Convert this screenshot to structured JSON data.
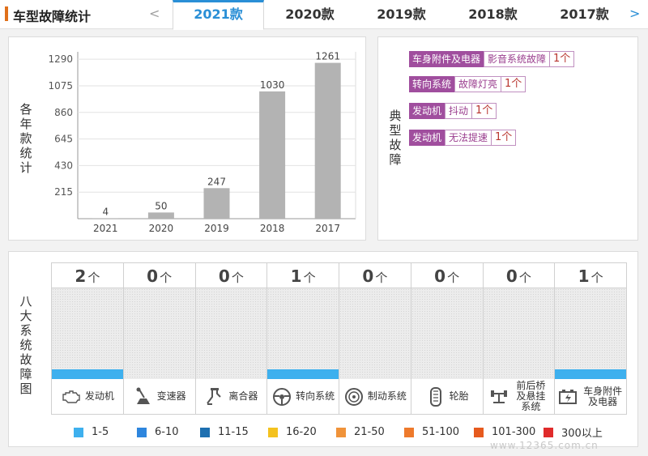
{
  "header": {
    "title": "车型故障统计",
    "prev_arrow": "<",
    "next_arrow": ">",
    "tabs": [
      "2021款",
      "2020款",
      "2019款",
      "2018款",
      "2017款"
    ],
    "active_tab": 0,
    "accent_color": "#2a8fd6",
    "mark_color": "#e0701a"
  },
  "chart_panel": {
    "ylabel": "各年款统计"
  },
  "chart_data": {
    "type": "bar",
    "categories": [
      "2021",
      "2020",
      "2019",
      "2018",
      "2017"
    ],
    "values": [
      4,
      50,
      247,
      1030,
      1261
    ],
    "yticks": [
      215,
      430,
      645,
      860,
      1075,
      1290
    ],
    "ylim": [
      0,
      1350
    ],
    "grid": true,
    "bar_color": "#b3b3b3"
  },
  "typical_panel": {
    "label": "典型故障",
    "faults": [
      {
        "category": "车身附件及电器",
        "desc": "影音系统故障",
        "count": "1个"
      },
      {
        "category": "转向系统",
        "desc": "故障灯亮",
        "count": "1个"
      },
      {
        "category": "发动机",
        "desc": "抖动",
        "count": "1个"
      },
      {
        "category": "发动机",
        "desc": "无法提速",
        "count": "1个"
      }
    ]
  },
  "eight_systems": {
    "label": "八大系统故障图",
    "unit": "个",
    "systems": [
      {
        "name": "发动机",
        "count": "2",
        "level": 1,
        "icon": "engine-icon"
      },
      {
        "name": "变速器",
        "count": "0",
        "level": 0,
        "icon": "gearbox-icon"
      },
      {
        "name": "离合器",
        "count": "0",
        "level": 0,
        "icon": "clutch-icon"
      },
      {
        "name": "转向系统",
        "count": "1",
        "level": 1,
        "icon": "steering-wheel-icon"
      },
      {
        "name": "制动系统",
        "count": "0",
        "level": 0,
        "icon": "brake-disc-icon"
      },
      {
        "name": "轮胎",
        "count": "0",
        "level": 0,
        "icon": "tire-icon"
      },
      {
        "name": "前后桥及悬挂系统",
        "count": "0",
        "level": 0,
        "icon": "axle-suspension-icon"
      },
      {
        "name": "车身附件及电器",
        "count": "1",
        "level": 1,
        "icon": "battery-electrical-icon"
      }
    ],
    "legend": [
      {
        "label": "1-5",
        "color": "#3eb0ee"
      },
      {
        "label": "6-10",
        "color": "#2e86de"
      },
      {
        "label": "11-15",
        "color": "#1d6fb0"
      },
      {
        "label": "16-20",
        "color": "#f4c21f"
      },
      {
        "label": "21-50",
        "color": "#f0933a"
      },
      {
        "label": "51-100",
        "color": "#ee7a2c"
      },
      {
        "label": "101-300",
        "color": "#e65a1e"
      },
      {
        "label": "300以上",
        "color": "#e02b2b"
      }
    ]
  },
  "watermark": "www.12365.com.cn"
}
